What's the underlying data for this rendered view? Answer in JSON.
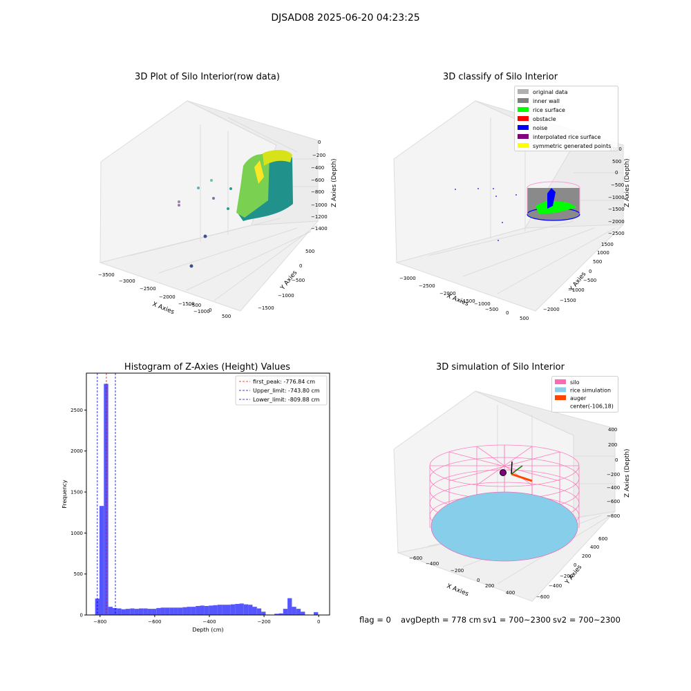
{
  "figure": {
    "suptitle": "DJSAD08 2025-06-20 04:23:25",
    "status": {
      "flag": "flag = 0",
      "avg_depth": "avgDepth = 778 cm",
      "sv1": "sv1 = 700~2300",
      "sv2": "sv2 = 700~2300"
    }
  },
  "chart_data": [
    {
      "type": "scatter",
      "title": "3D Plot of Silo Interior(row data)",
      "xlabel": "X Axies",
      "ylabel": "Y Axies",
      "zlabel": "Z Axies (Depth)",
      "x_ticks": [
        "−3500",
        "−3000",
        "−2500",
        "−2000",
        "−1500",
        "−1000",
        "−500",
        "0",
        "500"
      ],
      "y_ticks": [
        "−1500",
        "−1000",
        "−500",
        "0",
        "500"
      ],
      "z_ticks": [
        "0",
        "−200",
        "−400",
        "−600",
        "−800",
        "−1000",
        "−1200",
        "−1400"
      ],
      "colormap": [
        "#440154",
        "#31688e",
        "#21918c",
        "#35b779",
        "#fde725"
      ],
      "grid": true
    },
    {
      "type": "scatter",
      "title": "3D classify of Silo Interior",
      "xlabel": "X Axies",
      "ylabel": "Y Axies",
      "zlabel": "Z Axies (Depth)",
      "x_ticks": [
        "−3000",
        "−2500",
        "−2000",
        "−1500",
        "−1000",
        "−500",
        "0",
        "500"
      ],
      "y_ticks": [
        "−2000",
        "−1500",
        "−1000",
        "−500",
        "0",
        "500",
        "1000",
        "1500"
      ],
      "z_ticks": [
        "1000",
        "500",
        "0",
        "−500",
        "−1000",
        "−1500",
        "−2000",
        "−2500"
      ],
      "legend": [
        {
          "label": "original data",
          "color": "#b0b0b0"
        },
        {
          "label": "inner wall",
          "color": "#808080"
        },
        {
          "label": "rice surface",
          "color": "#00ff00"
        },
        {
          "label": "obstacle",
          "color": "#ff0000"
        },
        {
          "label": "noise",
          "color": "#0000ff"
        },
        {
          "label": "interpolated rice surface",
          "color": "#800080"
        },
        {
          "label": "symmetric generated points",
          "color": "#ffff00"
        }
      ],
      "legend_position": "top-right",
      "grid": true
    },
    {
      "type": "bar",
      "title": "Histogram of Z-Axies (Height) Values",
      "xlabel": "Depth (cm)",
      "ylabel": "Frequency",
      "xlim": [
        -850,
        40
      ],
      "ylim": [
        0,
        2950
      ],
      "x_ticks": [
        -800,
        -600,
        -400,
        -200,
        0
      ],
      "x_tick_labels": [
        "−800",
        "−600",
        "−400",
        "−200",
        "0"
      ],
      "y_ticks": [
        0,
        500,
        1000,
        1500,
        2000,
        2500
      ],
      "bar_color": "#4d4dff",
      "bins": [
        {
          "x0": -834,
          "x1": -818,
          "count": 5
        },
        {
          "x0": -818,
          "x1": -802,
          "count": 200
        },
        {
          "x0": -802,
          "x1": -786,
          "count": 1330
        },
        {
          "x0": -786,
          "x1": -770,
          "count": 2820
        },
        {
          "x0": -770,
          "x1": -754,
          "count": 100
        },
        {
          "x0": -754,
          "x1": -738,
          "count": 85
        },
        {
          "x0": -738,
          "x1": -722,
          "count": 80
        },
        {
          "x0": -722,
          "x1": -706,
          "count": 70
        },
        {
          "x0": -706,
          "x1": -690,
          "count": 75
        },
        {
          "x0": -690,
          "x1": -674,
          "count": 80
        },
        {
          "x0": -674,
          "x1": -658,
          "count": 75
        },
        {
          "x0": -658,
          "x1": -642,
          "count": 80
        },
        {
          "x0": -642,
          "x1": -626,
          "count": 80
        },
        {
          "x0": -626,
          "x1": -610,
          "count": 75
        },
        {
          "x0": -610,
          "x1": -594,
          "count": 75
        },
        {
          "x0": -594,
          "x1": -578,
          "count": 85
        },
        {
          "x0": -578,
          "x1": -562,
          "count": 90
        },
        {
          "x0": -562,
          "x1": -546,
          "count": 90
        },
        {
          "x0": -546,
          "x1": -530,
          "count": 90
        },
        {
          "x0": -530,
          "x1": -514,
          "count": 90
        },
        {
          "x0": -514,
          "x1": -498,
          "count": 90
        },
        {
          "x0": -498,
          "x1": -482,
          "count": 95
        },
        {
          "x0": -482,
          "x1": -466,
          "count": 100
        },
        {
          "x0": -466,
          "x1": -450,
          "count": 100
        },
        {
          "x0": -450,
          "x1": -434,
          "count": 110
        },
        {
          "x0": -434,
          "x1": -418,
          "count": 115
        },
        {
          "x0": -418,
          "x1": -402,
          "count": 110
        },
        {
          "x0": -402,
          "x1": -386,
          "count": 115
        },
        {
          "x0": -386,
          "x1": -370,
          "count": 120
        },
        {
          "x0": -370,
          "x1": -354,
          "count": 125
        },
        {
          "x0": -354,
          "x1": -338,
          "count": 125
        },
        {
          "x0": -338,
          "x1": -322,
          "count": 125
        },
        {
          "x0": -322,
          "x1": -306,
          "count": 130
        },
        {
          "x0": -306,
          "x1": -290,
          "count": 135
        },
        {
          "x0": -290,
          "x1": -274,
          "count": 140
        },
        {
          "x0": -274,
          "x1": -258,
          "count": 130
        },
        {
          "x0": -258,
          "x1": -242,
          "count": 125
        },
        {
          "x0": -242,
          "x1": -226,
          "count": 100
        },
        {
          "x0": -226,
          "x1": -210,
          "count": 80
        },
        {
          "x0": -210,
          "x1": -194,
          "count": 40
        },
        {
          "x0": -194,
          "x1": -178,
          "count": 5
        },
        {
          "x0": -162,
          "x1": -146,
          "count": 15
        },
        {
          "x0": -146,
          "x1": -130,
          "count": 20
        },
        {
          "x0": -130,
          "x1": -114,
          "count": 75
        },
        {
          "x0": -114,
          "x1": -98,
          "count": 205
        },
        {
          "x0": -98,
          "x1": -82,
          "count": 100
        },
        {
          "x0": -82,
          "x1": -66,
          "count": 75
        },
        {
          "x0": -66,
          "x1": -50,
          "count": 40
        },
        {
          "x0": -50,
          "x1": -34,
          "count": 5
        },
        {
          "x0": -18,
          "x1": -2,
          "count": 35
        }
      ],
      "vlines": [
        {
          "x": -776.84,
          "color": "#ff0000",
          "label": "first_peak: -776.84 cm"
        },
        {
          "x": -743.8,
          "color": "#0000cc",
          "label": "Upper_limit: -743.80 cm"
        },
        {
          "x": -809.88,
          "color": "#0000cc",
          "label": "Lower_limit: -809.88 cm"
        }
      ],
      "legend_position": "top-right",
      "grid": false
    },
    {
      "type": "area",
      "title": "3D simulation of Silo Interior",
      "xlabel": "X Axies",
      "ylabel": "Y Axies",
      "zlabel": "Z Axies (Depth)",
      "x_ticks": [
        "−600",
        "−400",
        "−200",
        "0",
        "200",
        "400"
      ],
      "y_ticks": [
        "−600",
        "−400",
        "−200",
        "0",
        "200",
        "400",
        "600"
      ],
      "z_ticks": [
        "400",
        "200",
        "0",
        "−200",
        "−400",
        "−600",
        "−800"
      ],
      "legend": [
        {
          "label": "silo",
          "color": "#ff69b4"
        },
        {
          "label": "rice simulation",
          "color": "#87ceeb"
        },
        {
          "label": "auger",
          "color": "#ff4500"
        },
        {
          "label": "center(-106,18)",
          "color": "none"
        }
      ],
      "legend_position": "top-right",
      "grid": true
    }
  ]
}
